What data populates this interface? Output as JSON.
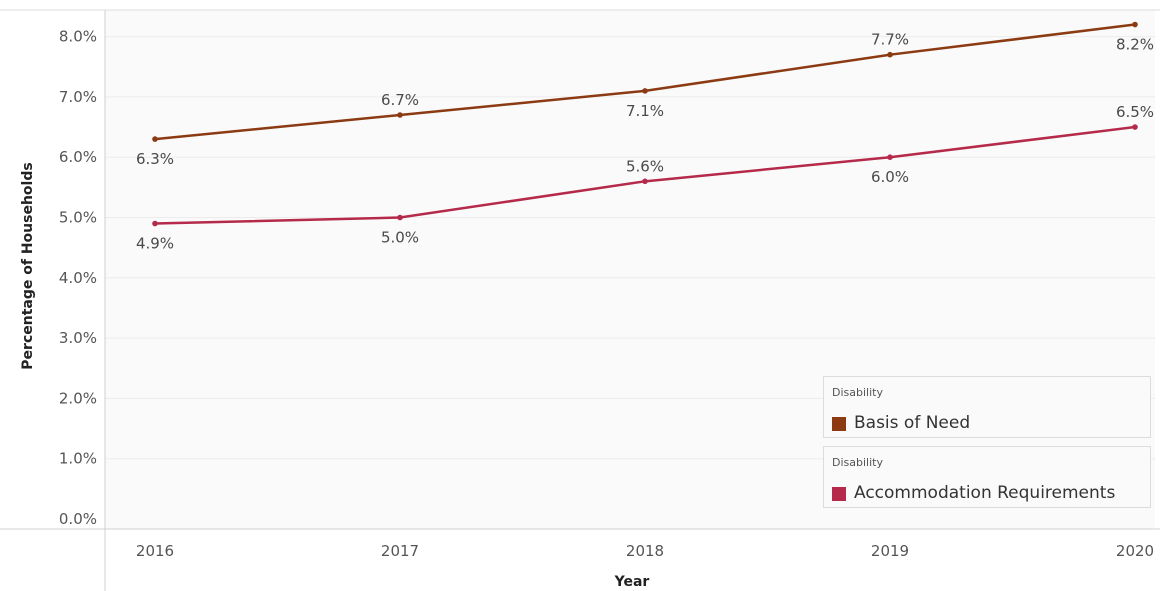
{
  "chart_data": {
    "type": "line",
    "title": "",
    "xlabel": "Year",
    "ylabel": "Percentage of Households",
    "x": [
      "2016",
      "2017",
      "2018",
      "2019",
      "2020"
    ],
    "ylim": [
      0,
      8.5
    ],
    "yticks": [
      "0.0%",
      "1.0%",
      "2.0%",
      "3.0%",
      "4.0%",
      "5.0%",
      "6.0%",
      "7.0%",
      "8.0%"
    ],
    "grid": true,
    "series": [
      {
        "name": "Basis of Need",
        "color": "#8b3a12",
        "values": [
          6.3,
          6.7,
          7.1,
          7.7,
          8.2
        ],
        "labels": [
          "6.3%",
          "6.7%",
          "7.1%",
          "7.7%",
          "8.2%"
        ]
      },
      {
        "name": "Accommodation Requirements",
        "color": "#b52a4a",
        "values": [
          4.9,
          5.0,
          5.6,
          6.0,
          6.5
        ],
        "labels": [
          "4.9%",
          "5.0%",
          "5.6%",
          "6.0%",
          "6.5%"
        ]
      }
    ],
    "legend": {
      "placement": "bottom-right",
      "groups": [
        {
          "title": "Disability",
          "entry": "Basis of Need",
          "color": "#8b3a12"
        },
        {
          "title": "Disability",
          "entry": "Accommodation Requirements",
          "color": "#b52a4a"
        }
      ]
    }
  }
}
